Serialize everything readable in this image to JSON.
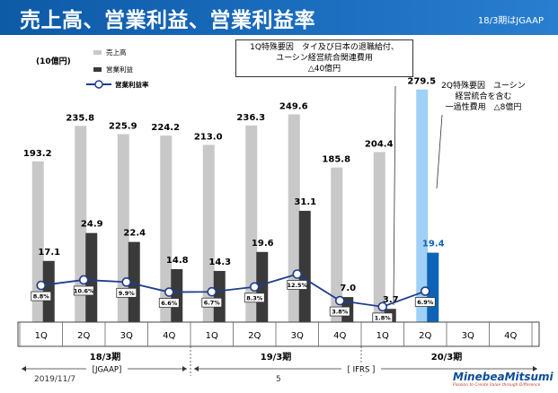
{
  "header": {
    "title": "売上高、営業利益、営業利益率",
    "standard": "18/3期はJGAAP"
  },
  "notes": {
    "q1_special": [
      "1Q特殊要因　タイ及び日本の退職給付、",
      "ユーシン経営統合関連費用",
      "△40億円"
    ],
    "q2_special": [
      "2Q特殊要因　ユーシン",
      "経営統合を含む",
      "一過性費用　△8億円"
    ]
  },
  "footer": {
    "date": "2019/11/7",
    "page": "5",
    "brand": "MinebeaMitsumi",
    "tagline": "Passion to Create Value through Difference"
  },
  "colors": {
    "sales": "#c8c8c8",
    "op_income": "#3a3a3a",
    "sales_highlight": "#9fd0f5",
    "op_income_highlight": "#0e63b6",
    "margin_line": "#1f3d8c",
    "header": "#1463b2"
  },
  "chart_data": {
    "type": "bar",
    "unit": "(10億円)",
    "categories": [
      "1Q",
      "2Q",
      "3Q",
      "4Q",
      "1Q",
      "2Q",
      "3Q",
      "4Q",
      "1Q",
      "2Q",
      "3Q",
      "4Q"
    ],
    "series": [
      {
        "name": "売上高",
        "values": [
          193.2,
          235.8,
          225.9,
          224.2,
          213.0,
          236.3,
          249.6,
          185.8,
          204.4,
          279.5,
          null,
          null
        ]
      },
      {
        "name": "営業利益",
        "values": [
          17.1,
          24.9,
          22.4,
          14.8,
          14.3,
          19.6,
          31.1,
          7.0,
          3.7,
          19.4,
          null,
          null
        ]
      },
      {
        "name": "営業利益率",
        "type": "line",
        "values": [
          8.8,
          10.6,
          9.9,
          6.6,
          6.7,
          8.3,
          12.5,
          3.8,
          1.8,
          6.9,
          null,
          null
        ]
      }
    ],
    "sales_labels": [
      "193.2",
      "235.8",
      "225.9",
      "224.2",
      "213.0",
      "236.3",
      "249.6",
      "185.8",
      "204.4",
      "279.5"
    ],
    "op_labels": [
      "17.1",
      "24.9",
      "22.4",
      "14.8",
      "14.3",
      "19.6",
      "31.1",
      "7.0",
      "3.7",
      "19.4"
    ],
    "margin_labels": [
      "8.8%",
      "10.6%",
      "9.9%",
      "6.6%",
      "6.7%",
      "8.3%",
      "12.5%",
      "3.8%",
      "1.8%",
      "6.9%"
    ],
    "legend": [
      "売上高",
      "営業利益",
      "営業利益率"
    ],
    "fiscal_years": [
      "18/3期",
      "19/3期",
      "20/3期"
    ],
    "standards": [
      "[JGAAP]",
      "[ IFRS ]"
    ],
    "ylim": [
      0,
      290
    ]
  }
}
